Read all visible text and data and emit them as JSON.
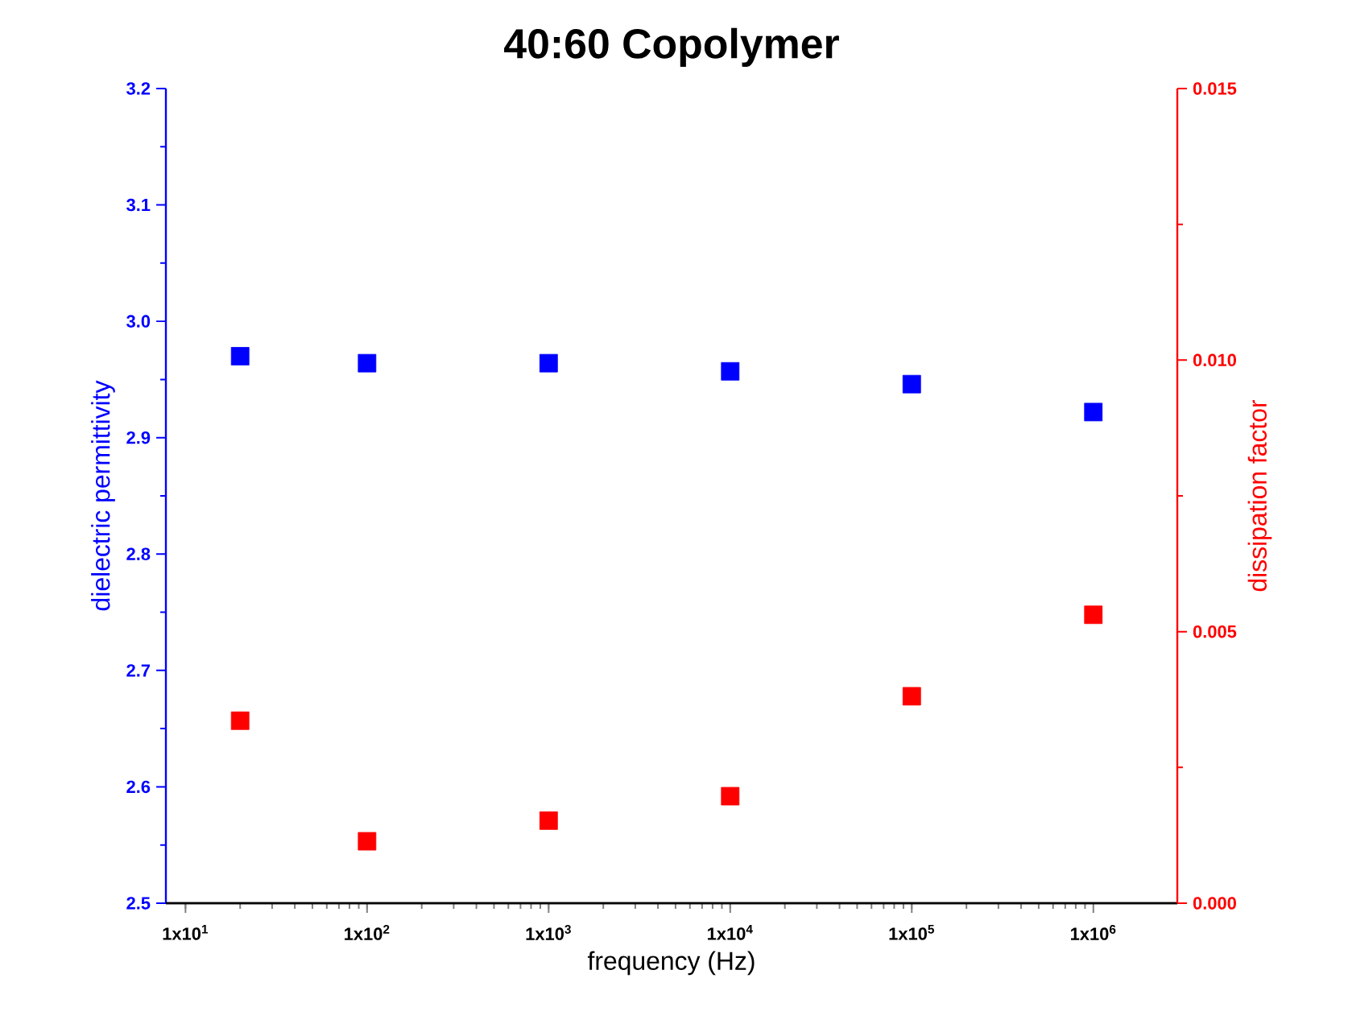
{
  "chart_data": {
    "type": "scatter",
    "title": "40:60 Copolymer",
    "xlabel": "frequency (Hz)",
    "ylabel": "dielectric permittivity",
    "y2label": "dissipation factor",
    "x": [
      20,
      100,
      1000,
      10000,
      100000,
      1000000
    ],
    "series": [
      {
        "color": "#0000ff",
        "axis": "y",
        "values": [
          2.97,
          2.964,
          2.964,
          2.957,
          2.946,
          2.922
        ]
      },
      {
        "color": "#ff0000",
        "axis": "y2",
        "values": [
          0.00336,
          0.00114,
          0.00152,
          0.00197,
          0.00381,
          0.00531
        ]
      }
    ],
    "log": "x",
    "marker": "square",
    "xlim": [
      7.8,
      2900000
    ],
    "xticks": [
      {
        "value": 10,
        "label": "1x10$^{1}$"
      },
      {
        "value": 100,
        "label": "1x10$^{2}$"
      },
      {
        "value": 1000,
        "label": "1x10$^{3}$"
      },
      {
        "value": 10000,
        "label": "1x10$^{4}$"
      },
      {
        "value": 100000,
        "label": "1x10$^{5}$"
      },
      {
        "value": 1000000,
        "label": "1x10$^{6}$"
      }
    ],
    "ylim": [
      2.5,
      3.2
    ],
    "yticks": [
      2.5,
      2.6,
      2.7,
      2.8,
      2.9,
      {
        "value": 3,
        "label": "3.0"
      },
      3.1,
      3.2
    ],
    "y2lim": [
      0,
      0.015
    ],
    "y2ticks": [
      {
        "value": 0,
        "label": "0.000"
      },
      0.005,
      {
        "value": 0.01,
        "label": "0.010"
      },
      0.015
    ]
  }
}
